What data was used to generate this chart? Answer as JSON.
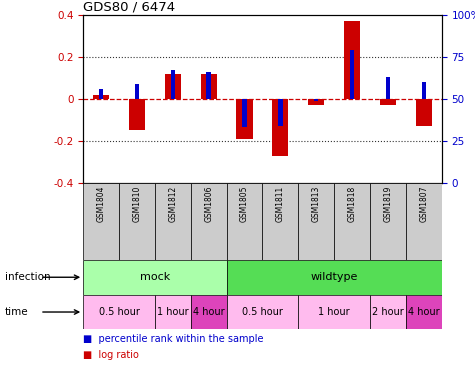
{
  "title": "GDS80 / 6474",
  "samples": [
    "GSM1804",
    "GSM1810",
    "GSM1812",
    "GSM1806",
    "GSM1805",
    "GSM1811",
    "GSM1813",
    "GSM1818",
    "GSM1819",
    "GSM1807"
  ],
  "log_ratio": [
    0.02,
    -0.15,
    0.12,
    0.12,
    -0.19,
    -0.27,
    -0.03,
    0.37,
    -0.03,
    -0.13
  ],
  "percentile_rank": [
    56,
    59,
    67,
    66,
    33,
    34,
    49,
    79,
    63,
    60
  ],
  "ylim": [
    -0.4,
    0.4
  ],
  "y_ticks_left": [
    -0.4,
    -0.2,
    0.0,
    0.2,
    0.4
  ],
  "y_ticks_right": [
    0,
    25,
    50,
    75,
    100
  ],
  "bar_color": "#cc0000",
  "dot_color": "#0000cc",
  "ref_line_color": "#cc0000",
  "dotted_line_color": "#333333",
  "sample_bg_color": "#cccccc",
  "infection_groups": [
    {
      "label": "mock",
      "start": 0,
      "end": 4,
      "color": "#aaffaa"
    },
    {
      "label": "wildtype",
      "start": 4,
      "end": 10,
      "color": "#55dd55"
    }
  ],
  "time_groups": [
    {
      "label": "0.5 hour",
      "start": 0,
      "end": 2,
      "color": "#ffbbee"
    },
    {
      "label": "1 hour",
      "start": 2,
      "end": 3,
      "color": "#ffbbee"
    },
    {
      "label": "4 hour",
      "start": 3,
      "end": 4,
      "color": "#dd44bb"
    },
    {
      "label": "0.5 hour",
      "start": 4,
      "end": 6,
      "color": "#ffbbee"
    },
    {
      "label": "1 hour",
      "start": 6,
      "end": 8,
      "color": "#ffbbee"
    },
    {
      "label": "2 hour",
      "start": 8,
      "end": 9,
      "color": "#ffbbee"
    },
    {
      "label": "4 hour",
      "start": 9,
      "end": 10,
      "color": "#dd44bb"
    }
  ],
  "legend_items": [
    {
      "label": "log ratio",
      "color": "#cc0000"
    },
    {
      "label": "percentile rank within the sample",
      "color": "#0000cc"
    }
  ]
}
